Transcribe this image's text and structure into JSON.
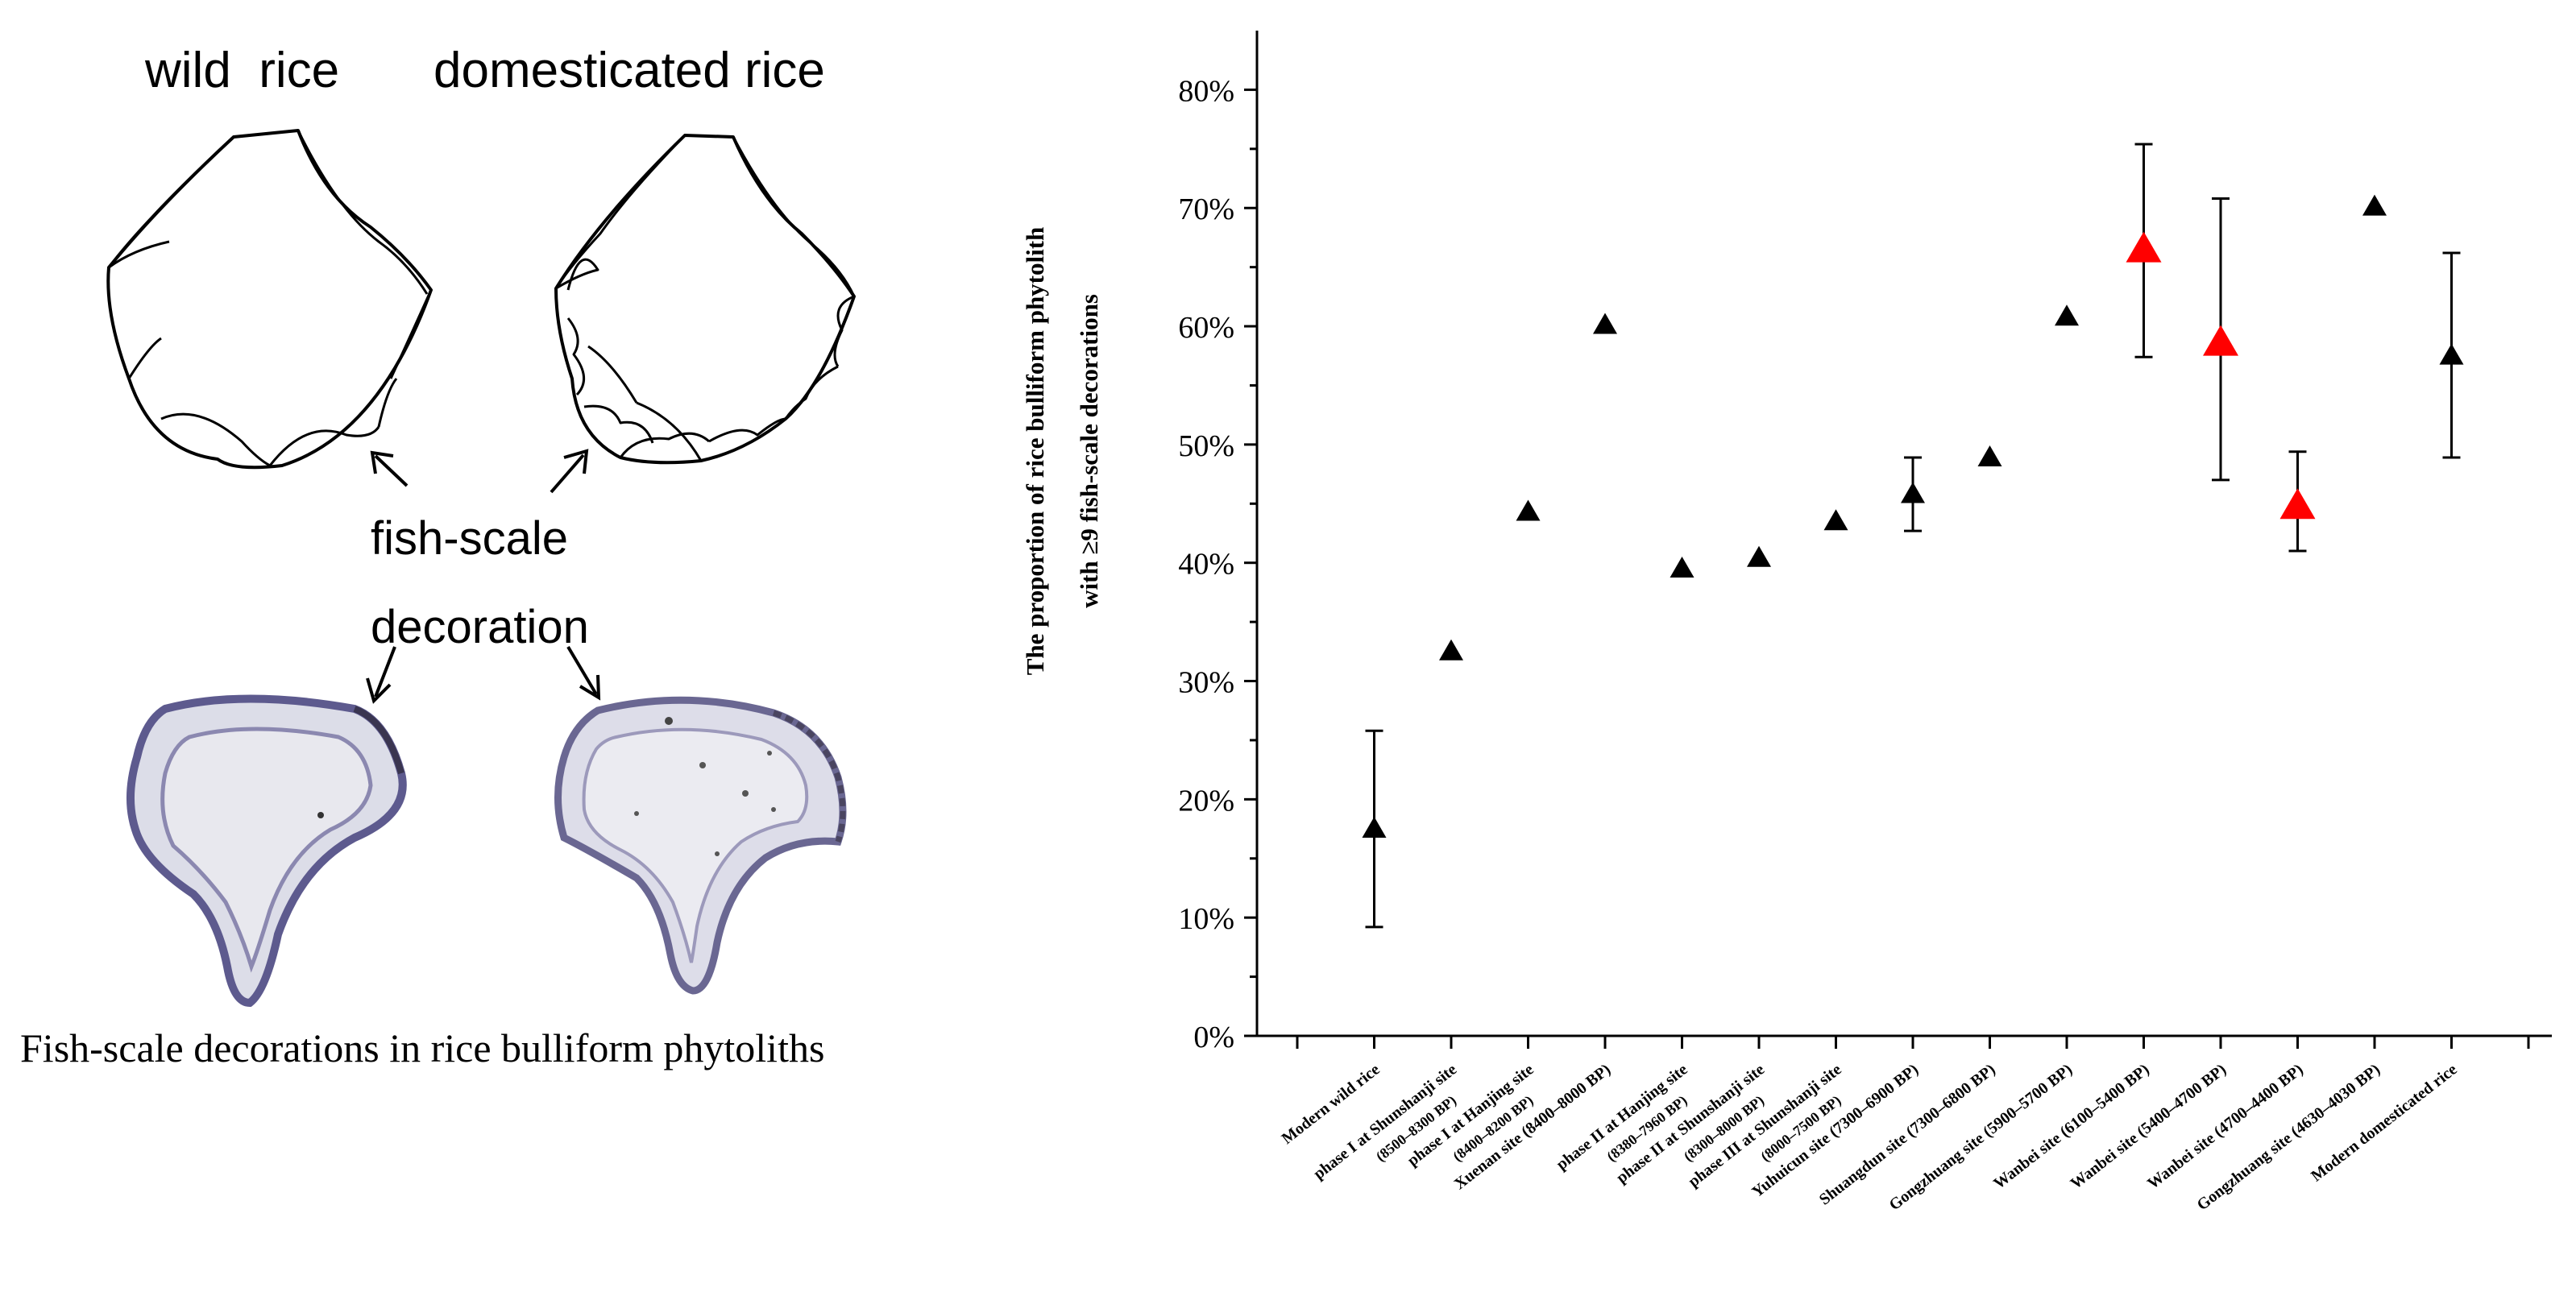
{
  "illustration": {
    "wild_label": "wild  rice",
    "domesticated_label": "domesticated rice",
    "fish_scale_label": "fish-scale",
    "decoration_label": "decoration",
    "caption": "Fish-scale decorations in rice bulliform phytoliths"
  },
  "colors": {
    "black_marker": "#000000",
    "red_marker": "#ff0000",
    "phytolith_fill": "#d9dbe6",
    "phytolith_edge": "#5d5a8e"
  },
  "chart_data": {
    "type": "scatter",
    "title": "",
    "xlabel": "",
    "ylabel_line1": "The proportion of rice bulliform phytolith",
    "ylabel_line2": "with ≥9 fish-scale decorations",
    "ylim": [
      0,
      85
    ],
    "y_ticks": [
      0,
      10,
      20,
      30,
      40,
      50,
      60,
      70,
      80
    ],
    "y_tick_labels": [
      "0%",
      "10%",
      "20%",
      "30%",
      "40%",
      "50%",
      "60%",
      "70%",
      "80%"
    ],
    "grid": false,
    "points": [
      {
        "line1": "Modern wild rice",
        "line2": "",
        "value": 17.5,
        "err_low": 9.2,
        "err_high": 25.8,
        "color": "black"
      },
      {
        "line1": "phase I at Shunshanji site",
        "line2": "(8500–8300 BP)",
        "value": 32.5,
        "color": "black"
      },
      {
        "line1": "phase I at Hanjing site",
        "line2": "(8400–8200 BP)",
        "value": 44.3,
        "color": "black"
      },
      {
        "line1": "Xuenan site (8400–8000 BP)",
        "line2": "",
        "value": 60.1,
        "color": "black"
      },
      {
        "line1": "phase II at Hanjing site",
        "line2": "(8380–7960 BP)",
        "value": 39.5,
        "color": "black"
      },
      {
        "line1": "phase II at Shunshanji site",
        "line2": "(8300–8000 BP)",
        "value": 40.4,
        "color": "black"
      },
      {
        "line1": "phase III at Shunshanji site",
        "line2": "(8000–7500 BP)",
        "value": 43.5,
        "color": "black"
      },
      {
        "line1": "Yuhuicun site (7300–6900 BP)",
        "line2": "",
        "value": 45.8,
        "err_low": 42.7,
        "err_high": 48.9,
        "color": "black"
      },
      {
        "line1": "Shuangdun site (7300–6800 BP)",
        "line2": "",
        "value": 48.9,
        "color": "black"
      },
      {
        "line1": "Gongzhuang site (5900–5700 BP)",
        "line2": "",
        "value": 60.8,
        "color": "black"
      },
      {
        "line1": "Wanbei site (6100–5400 BP)",
        "line2": "",
        "value": 66.5,
        "err_low": 57.4,
        "err_high": 75.4,
        "color": "red"
      },
      {
        "line1": "Wanbei site (5400–4700 BP)",
        "line2": "",
        "value": 58.6,
        "err_low": 47.0,
        "err_high": 70.8,
        "color": "red"
      },
      {
        "line1": "Wanbei site (4700–4400 BP)",
        "line2": "",
        "value": 44.8,
        "err_low": 41.0,
        "err_high": 49.4,
        "color": "red"
      },
      {
        "line1": "Gongzhuang site (4630–4030 BP)",
        "line2": "",
        "value": 70.1,
        "color": "black"
      },
      {
        "line1": "Modern domesticated rice",
        "line2": "",
        "value": 57.5,
        "err_low": 48.9,
        "err_high": 66.2,
        "color": "black"
      }
    ]
  }
}
